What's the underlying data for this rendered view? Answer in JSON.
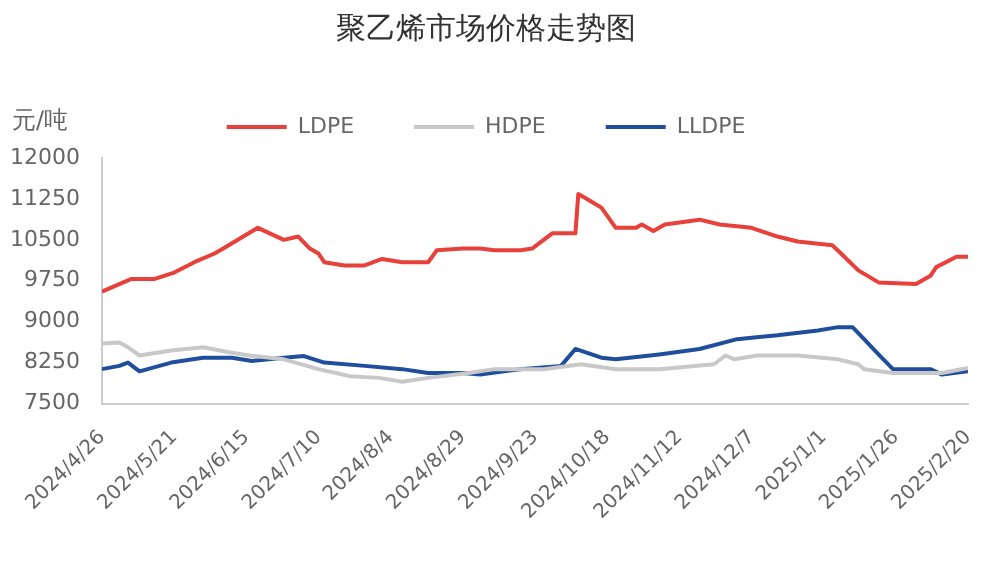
{
  "chart_data": {
    "type": "line",
    "title": "聚乙烯市场价格走势图",
    "ylabel": "元/吨",
    "legend": "top",
    "grid": false,
    "marker": "none",
    "line_style": "solid",
    "ylim": [
      7500,
      12000
    ],
    "yticks": [
      7500,
      8250,
      9000,
      9750,
      10500,
      11250,
      12000
    ],
    "xlim": [
      "2024-04-26",
      "2025-02-20"
    ],
    "xticks": [
      {
        "value": "2024-04-26",
        "label": "2024/4/26"
      },
      {
        "value": "2024-05-21",
        "label": "2024/5/21"
      },
      {
        "value": "2024-06-15",
        "label": "2024/6/15"
      },
      {
        "value": "2024-07-10",
        "label": "2024/7/10"
      },
      {
        "value": "2024-08-04",
        "label": "2024/8/4"
      },
      {
        "value": "2024-08-29",
        "label": "2024/8/29"
      },
      {
        "value": "2024-09-23",
        "label": "2024/9/23"
      },
      {
        "value": "2024-10-18",
        "label": "2024/10/18"
      },
      {
        "value": "2024-11-12",
        "label": "2024/11/12"
      },
      {
        "value": "2024-12-07",
        "label": "2024/12/7"
      },
      {
        "value": "2025-01-01",
        "label": "2025/1/1"
      },
      {
        "value": "2025-01-26",
        "label": "2025/1/26"
      },
      {
        "value": "2025-02-20",
        "label": "2025/2/20"
      }
    ],
    "series": [
      {
        "name": "LDPE",
        "color": "#e8403a",
        "x": [
          "2024-04-26",
          "2024-05-06",
          "2024-05-14",
          "2024-05-21",
          "2024-05-28",
          "2024-06-04",
          "2024-06-07",
          "2024-06-19",
          "2024-06-28",
          "2024-07-03",
          "2024-07-07",
          "2024-07-10",
          "2024-07-12",
          "2024-07-19",
          "2024-07-26",
          "2024-08-01",
          "2024-08-08",
          "2024-08-17",
          "2024-08-20",
          "2024-08-29",
          "2024-09-04",
          "2024-09-09",
          "2024-09-18",
          "2024-09-22",
          "2024-09-26",
          "2024-09-29",
          "2024-10-07",
          "2024-10-08",
          "2024-10-11",
          "2024-10-16",
          "2024-10-21",
          "2024-10-28",
          "2024-10-30",
          "2024-11-03",
          "2024-11-07",
          "2024-11-19",
          "2024-11-26",
          "2024-12-07",
          "2024-12-16",
          "2024-12-23",
          "2025-01-04",
          "2025-01-07",
          "2025-01-13",
          "2025-01-20",
          "2025-02-02",
          "2025-02-07",
          "2025-02-09",
          "2025-02-16",
          "2025-02-20"
        ],
        "values": [
          9550,
          9780,
          9780,
          9900,
          10090,
          10250,
          10340,
          10720,
          10500,
          10560,
          10340,
          10250,
          10090,
          10030,
          10030,
          10150,
          10090,
          10090,
          10310,
          10340,
          10340,
          10310,
          10310,
          10340,
          10500,
          10620,
          10620,
          11340,
          11250,
          11090,
          10720,
          10720,
          10780,
          10660,
          10780,
          10870,
          10780,
          10720,
          10560,
          10470,
          10400,
          10250,
          9940,
          9720,
          9690,
          9840,
          10000,
          10190,
          10190
        ]
      },
      {
        "name": "HDPE",
        "color": "#c8c8c8",
        "x": [
          "2024-04-26",
          "2024-05-02",
          "2024-05-05",
          "2024-05-09",
          "2024-05-20",
          "2024-05-31",
          "2024-06-09",
          "2024-06-16",
          "2024-06-28",
          "2024-07-10",
          "2024-07-21",
          "2024-07-31",
          "2024-08-08",
          "2024-08-17",
          "2024-08-31",
          "2024-09-09",
          "2024-09-26",
          "2024-10-09",
          "2024-10-21",
          "2024-11-05",
          "2024-11-24",
          "2024-11-28",
          "2024-12-01",
          "2024-12-09",
          "2024-12-23",
          "2025-01-06",
          "2025-01-13",
          "2025-01-15",
          "2025-01-25",
          "2025-02-07",
          "2025-02-11",
          "2025-02-20"
        ],
        "values": [
          8600,
          8620,
          8530,
          8380,
          8470,
          8530,
          8440,
          8380,
          8310,
          8130,
          8000,
          7970,
          7900,
          7970,
          8060,
          8130,
          8130,
          8220,
          8130,
          8130,
          8220,
          8380,
          8310,
          8380,
          8380,
          8310,
          8220,
          8130,
          8060,
          8060,
          8060,
          8150
        ]
      },
      {
        "name": "LLDPE",
        "color": "#1f4e9c",
        "x": [
          "2024-04-26",
          "2024-05-02",
          "2024-05-05",
          "2024-05-09",
          "2024-05-20",
          "2024-05-31",
          "2024-06-10",
          "2024-06-17",
          "2024-06-28",
          "2024-07-05",
          "2024-07-12",
          "2024-07-26",
          "2024-08-08",
          "2024-08-17",
          "2024-08-29",
          "2024-09-04",
          "2024-09-18",
          "2024-10-02",
          "2024-10-07",
          "2024-10-16",
          "2024-10-21",
          "2024-11-05",
          "2024-11-19",
          "2024-12-02",
          "2024-12-16",
          "2024-12-30",
          "2025-01-06",
          "2025-01-11",
          "2025-01-15",
          "2025-01-20",
          "2025-01-25",
          "2025-02-07",
          "2025-02-11",
          "2025-02-20"
        ],
        "values": [
          8130,
          8190,
          8250,
          8090,
          8250,
          8340,
          8340,
          8280,
          8340,
          8370,
          8250,
          8190,
          8130,
          8060,
          8060,
          8030,
          8130,
          8190,
          8500,
          8340,
          8310,
          8400,
          8500,
          8680,
          8750,
          8840,
          8900,
          8900,
          8680,
          8400,
          8130,
          8130,
          8030,
          8090
        ]
      }
    ]
  }
}
